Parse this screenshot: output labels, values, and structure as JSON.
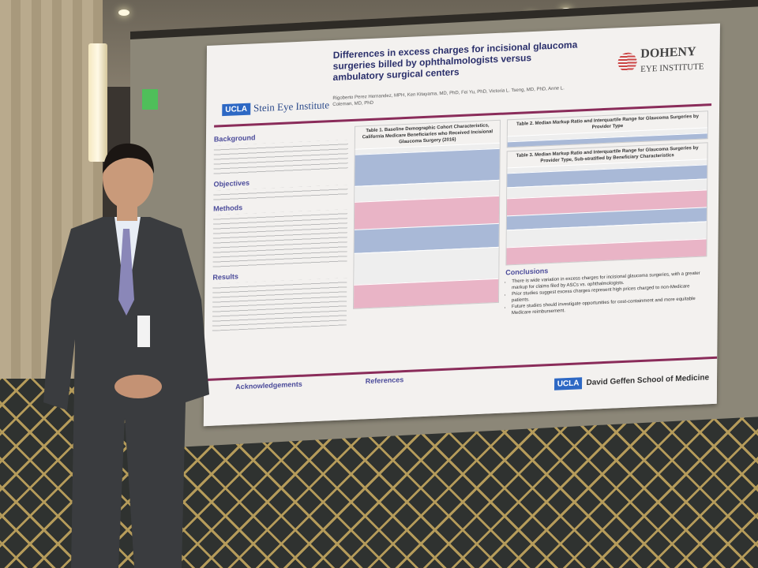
{
  "poster": {
    "title": "Differences in excess charges for incisional glaucoma surgeries billed by ophthalmologists versus ambulatory surgical centers",
    "authors": "Rigoberto Perez Hernandez, MPH, Ken Kitayama, MD, PhD, Fei Yu, PhD, Victoria L. Tseng, MD, PhD, Anne L. Coleman, MD, PhD",
    "left_logo": {
      "badge": "UCLA",
      "name": "Stein Eye Institute"
    },
    "right_logo": {
      "name": "DOHENY",
      "sub": "EYE INSTITUTE"
    },
    "sections": {
      "background": "Background",
      "objectives": "Objectives",
      "methods": "Methods",
      "results": "Results",
      "acknowledgements": "Acknowledgements",
      "references": "References",
      "conclusions": "Conclusions"
    },
    "table1_title": "Table 1. Baseline Demographic Cohort Characteristics, California Medicare Beneficiaries who Received Incisional Glaucoma Surgery (2016)",
    "table2_title": "Table 2. Median Markup Ratio and Interquartile Range for Glaucoma Surgeries by Provider Type",
    "table3_title": "Table 3. Median Markup Ratio and Interquartile Range for Glaucoma Surgeries by Provider Type, Sub-stratified by Beneficiary Characteristics",
    "conclusions": [
      "There is wide variation in excess charges for incisional glaucoma surgeries, with a greater markup for claims filed by ASCs vs. ophthalmologists.",
      "Prior studies suggest excess charges represent high prices charged to non-Medicare patients.",
      "Future studies should investigate opportunities for cost-containment and more equitable Medicare reimbursement."
    ],
    "footer_logo": {
      "badge": "UCLA",
      "name": "David Geffen School of Medicine"
    }
  }
}
